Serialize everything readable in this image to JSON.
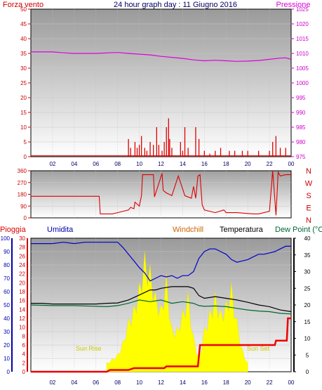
{
  "page": {
    "title": "24 hour graph day : 11 Giugno 2016"
  },
  "colors": {
    "wind": "#dd0000",
    "pressure": "#dd00dd",
    "humidity": "#0000cc",
    "temperature": "#000000",
    "dewpoint": "#006633",
    "rain": "#ee0000",
    "sun": "#ffff00",
    "windchill": "#cc6600",
    "axis_dark": "#000066"
  },
  "chart_data": [
    {
      "id": "wind-pressure",
      "type": "bar",
      "title": "24 hour graph day : 11 Giugno 2016",
      "left_label": "Forza vento",
      "right_label": "Pressione",
      "left_ticks": [
        "50",
        "45",
        "40",
        "35",
        "30",
        "25",
        "20",
        "15",
        "10",
        "5",
        "0"
      ],
      "right_ticks": [
        "1025",
        "1020",
        "1015",
        "1010",
        "1005",
        "1000",
        "995",
        "990",
        "985",
        "980",
        "975"
      ],
      "ylim_left": [
        0,
        50
      ],
      "ylim_right": [
        975,
        1025
      ],
      "x_ticks": [
        "02",
        "04",
        "06",
        "08",
        "10",
        "12",
        "14",
        "16",
        "18",
        "20",
        "22",
        "00"
      ],
      "xlim": [
        0,
        24
      ],
      "grid": true,
      "pressure": {
        "name": "Pressione",
        "x": [
          0,
          2,
          3,
          4,
          6,
          8,
          9,
          11,
          12,
          14,
          15,
          16,
          17,
          18,
          19,
          20,
          21,
          22,
          23,
          23.5,
          24
        ],
        "y": [
          1010.5,
          1010.5,
          1010.2,
          1010,
          1010,
          1010.3,
          1010,
          1009.5,
          1009,
          1008.3,
          1007.8,
          1007.5,
          1007.7,
          1007.5,
          1007.3,
          1007.4,
          1007.6,
          1008,
          1008.4,
          1008.5,
          1008.0
        ]
      },
      "wind_baseline": 0.3,
      "wind_bars": {
        "x": [
          9.0,
          9.2,
          9.6,
          9.8,
          10.0,
          10.2,
          10.5,
          10.7,
          11.0,
          11.3,
          11.6,
          11.8,
          12.1,
          12.3,
          12.5,
          12.7,
          12.8,
          13.0,
          13.8,
          14.0,
          14.2,
          14.5,
          15.2,
          15.5,
          16.0,
          16.5,
          17.0,
          17.5,
          18.3,
          18.8,
          19.5,
          20.0,
          21.0,
          22.0,
          22.3,
          22.6,
          23.0,
          23.5
        ],
        "y": [
          6,
          3,
          5,
          3,
          4,
          7,
          3,
          2,
          5,
          4,
          10,
          4,
          2,
          5,
          10,
          13,
          6,
          3,
          5,
          2,
          10,
          3,
          10,
          6,
          2,
          1,
          2,
          3,
          2,
          2,
          2,
          2,
          2,
          2,
          5,
          7,
          3,
          3
        ]
      }
    },
    {
      "id": "direction",
      "type": "line",
      "left_ticks": [
        "360",
        "270",
        "180",
        "90",
        "0"
      ],
      "ylim": [
        0,
        360
      ],
      "compass": [
        "N",
        "W",
        "S",
        "E",
        "N"
      ],
      "x_ticks": [
        "02",
        "04",
        "06",
        "08",
        "10",
        "12",
        "14",
        "16",
        "18",
        "20",
        "22",
        "00"
      ],
      "xlim": [
        0,
        24
      ],
      "series": [
        {
          "x": [
            0,
            6.3,
            6.4,
            7.5,
            8.0,
            9.0,
            9.2,
            9.5,
            9.6,
            10.0,
            10.2,
            10.3,
            11.3,
            11.4,
            12.1,
            12.2,
            12.5,
            13.0,
            13.2,
            13.6,
            14.0,
            14.2,
            14.8,
            15.0,
            15.2,
            15.4,
            15.6,
            15.8,
            16.0,
            17.0,
            17.8,
            18.0,
            19.0,
            20.5,
            21.0,
            22.0,
            22.3,
            22.4,
            22.6,
            22.8,
            23.0,
            23.5,
            24.0
          ],
          "y": [
            165,
            165,
            30,
            30,
            40,
            60,
            80,
            70,
            120,
            90,
            170,
            330,
            330,
            160,
            340,
            210,
            190,
            170,
            220,
            320,
            220,
            170,
            150,
            240,
            150,
            320,
            330,
            100,
            60,
            40,
            60,
            40,
            40,
            30,
            30,
            50,
            360,
            250,
            20,
            350,
            320,
            330,
            330
          ]
        }
      ]
    },
    {
      "id": "rain-humidity-temp",
      "type": "line",
      "labels": [
        "Pioggia",
        "Umidita",
        "Windchill",
        "Temperatura",
        "Dew Point (°C"
      ],
      "annotations": [
        "Sun Rise",
        "Sun Set"
      ],
      "humidity_ticks": [
        "100",
        "90",
        "80",
        "70",
        "60",
        "50",
        "40",
        "30",
        "20",
        "10",
        "0"
      ],
      "rain_ticks": [
        "30",
        "28",
        "26",
        "24",
        "22",
        "20",
        "18",
        "16",
        "14",
        "12",
        "10",
        "8",
        "6",
        "4",
        "2",
        "0"
      ],
      "temp_ticks": [
        "40",
        "35",
        "30",
        "25",
        "20",
        "15",
        "10",
        "5",
        "0"
      ],
      "ylim_humidity": [
        0,
        100
      ],
      "ylim_rain": [
        0,
        30
      ],
      "ylim_temp": [
        0,
        40
      ],
      "x_ticks": [
        "02",
        "04",
        "06",
        "08",
        "10",
        "12",
        "14",
        "16",
        "18",
        "20",
        "22",
        "00"
      ],
      "xlim": [
        0,
        24
      ],
      "grid": true,
      "series": [
        {
          "name": "Umidita",
          "x": [
            0,
            2,
            3,
            4,
            5,
            6,
            7,
            8,
            8.5,
            9,
            9.5,
            10,
            10.5,
            11,
            11.5,
            12,
            12.5,
            13,
            13.5,
            14,
            14.5,
            15,
            15.5,
            16,
            16.5,
            17,
            17.5,
            18,
            18.5,
            19,
            19.5,
            20,
            20.5,
            21,
            21.5,
            22,
            22.5,
            23,
            23.5,
            24
          ],
          "y": [
            96,
            96,
            97,
            96,
            97,
            97,
            97,
            97,
            93,
            88,
            83,
            78,
            74,
            68,
            70,
            72,
            71,
            72,
            70,
            72,
            72,
            75,
            85,
            90,
            92,
            92,
            90,
            88,
            84,
            82,
            83,
            84,
            86,
            88,
            88,
            89,
            90,
            92,
            94,
            94
          ]
        },
        {
          "name": "Temperatura",
          "x": [
            0,
            1,
            2,
            4,
            6,
            7,
            8,
            9,
            10,
            11,
            11.5,
            12,
            13,
            14,
            14.5,
            15,
            15.5,
            16,
            17,
            18,
            19,
            20,
            21,
            22,
            23,
            24
          ],
          "y": [
            20.5,
            20.5,
            20.3,
            20.3,
            20.3,
            20.5,
            20.6,
            21.5,
            23,
            24.5,
            24.5,
            25,
            25.5,
            25.5,
            25.5,
            25.0,
            22.8,
            22.0,
            22.5,
            22.0,
            21.5,
            20.8,
            20.0,
            19.5,
            18.5,
            18.0
          ]
        },
        {
          "name": "Dew Point (°C",
          "x": [
            0,
            2,
            4,
            6,
            7,
            8,
            9,
            10,
            11,
            12,
            13,
            14,
            15,
            15.5,
            16,
            17,
            18,
            19,
            20,
            21,
            22,
            23,
            24
          ],
          "y": [
            20.0,
            19.8,
            19.8,
            19.6,
            19.5,
            19.8,
            20.5,
            21.5,
            21,
            21.5,
            20.5,
            21,
            20.5,
            19.8,
            19.6,
            19.7,
            19.5,
            19.0,
            18.5,
            18.2,
            18.0,
            17.5,
            17.3
          ]
        }
      ],
      "rain_cumulative": {
        "name": "Pioggia",
        "x": [
          0,
          7.0,
          7.3,
          9.0,
          9.5,
          12.3,
          12.5,
          15.4,
          15.6,
          22.5,
          22.6,
          23.6,
          23.7,
          24
        ],
        "y": [
          0,
          0,
          0.4,
          0.4,
          0.8,
          0.8,
          1.2,
          1.2,
          6.0,
          6.0,
          7.0,
          7.0,
          12.0,
          12.0
        ]
      },
      "sunshine": {
        "x": [
          7.0,
          7.5,
          8.0,
          8.5,
          9.0,
          9.5,
          10.0,
          10.5,
          11.0,
          11.5,
          12.0,
          12.5,
          13.0,
          13.5,
          14.0,
          14.5,
          15.0,
          15.5,
          16.0,
          16.5,
          17.0,
          17.5,
          18.0,
          18.5,
          19.0,
          19.5,
          20.0
        ],
        "y": [
          2,
          3,
          4,
          7,
          12,
          15,
          20,
          27,
          24,
          18,
          15,
          22,
          10,
          10,
          14,
          18,
          8,
          3,
          10,
          14,
          18,
          14,
          16,
          20,
          12,
          5,
          2
        ]
      }
    }
  ]
}
